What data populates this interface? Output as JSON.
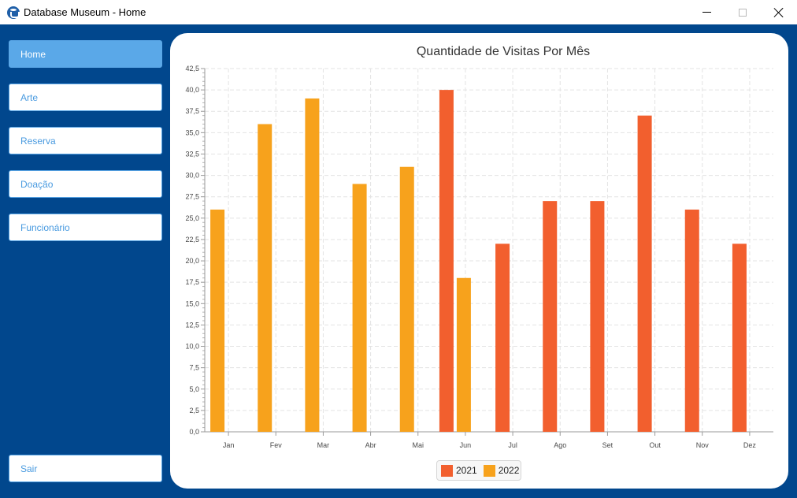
{
  "window": {
    "title": "Database Museum - Home",
    "icon": "database-icon"
  },
  "sidebar": {
    "items": [
      {
        "label": "Home",
        "active": true
      },
      {
        "label": "Arte",
        "active": false
      },
      {
        "label": "Reserva",
        "active": false
      },
      {
        "label": "Doação",
        "active": false
      },
      {
        "label": "Funcionário",
        "active": false
      }
    ],
    "exit_label": "Sair"
  },
  "colors": {
    "sidebar_bg": "#01478d",
    "nav_active": "#5aa8e8",
    "nav_text": "#4a9be0",
    "series_2021": "#f25f2e",
    "series_2022": "#f7a21c"
  },
  "chart_data": {
    "type": "bar",
    "title": "Quantidade de Visitas Por Mês",
    "xlabel": "",
    "ylabel": "",
    "categories": [
      "Jan",
      "Fev",
      "Mar",
      "Abr",
      "Mai",
      "Jun",
      "Jul",
      "Ago",
      "Set",
      "Out",
      "Nov",
      "Dez"
    ],
    "series": [
      {
        "name": "2021",
        "color": "#f25f2e",
        "values": [
          null,
          null,
          null,
          null,
          null,
          40,
          22,
          27,
          27,
          37,
          26,
          22
        ]
      },
      {
        "name": "2022",
        "color": "#f7a21c",
        "values": [
          26,
          36,
          39,
          29,
          31,
          18,
          null,
          null,
          null,
          null,
          null,
          null
        ]
      }
    ],
    "ylim": [
      0,
      42.5
    ],
    "ytick_step": 2.5,
    "ytick_labels": [
      "0,0",
      "2,5",
      "5,0",
      "7,5",
      "10,0",
      "12,5",
      "15,0",
      "17,5",
      "20,0",
      "22,5",
      "25,0",
      "27,5",
      "30,0",
      "32,5",
      "35,0",
      "37,5",
      "40,0",
      "42,5"
    ],
    "grid": true,
    "legend": "bottom-center"
  }
}
